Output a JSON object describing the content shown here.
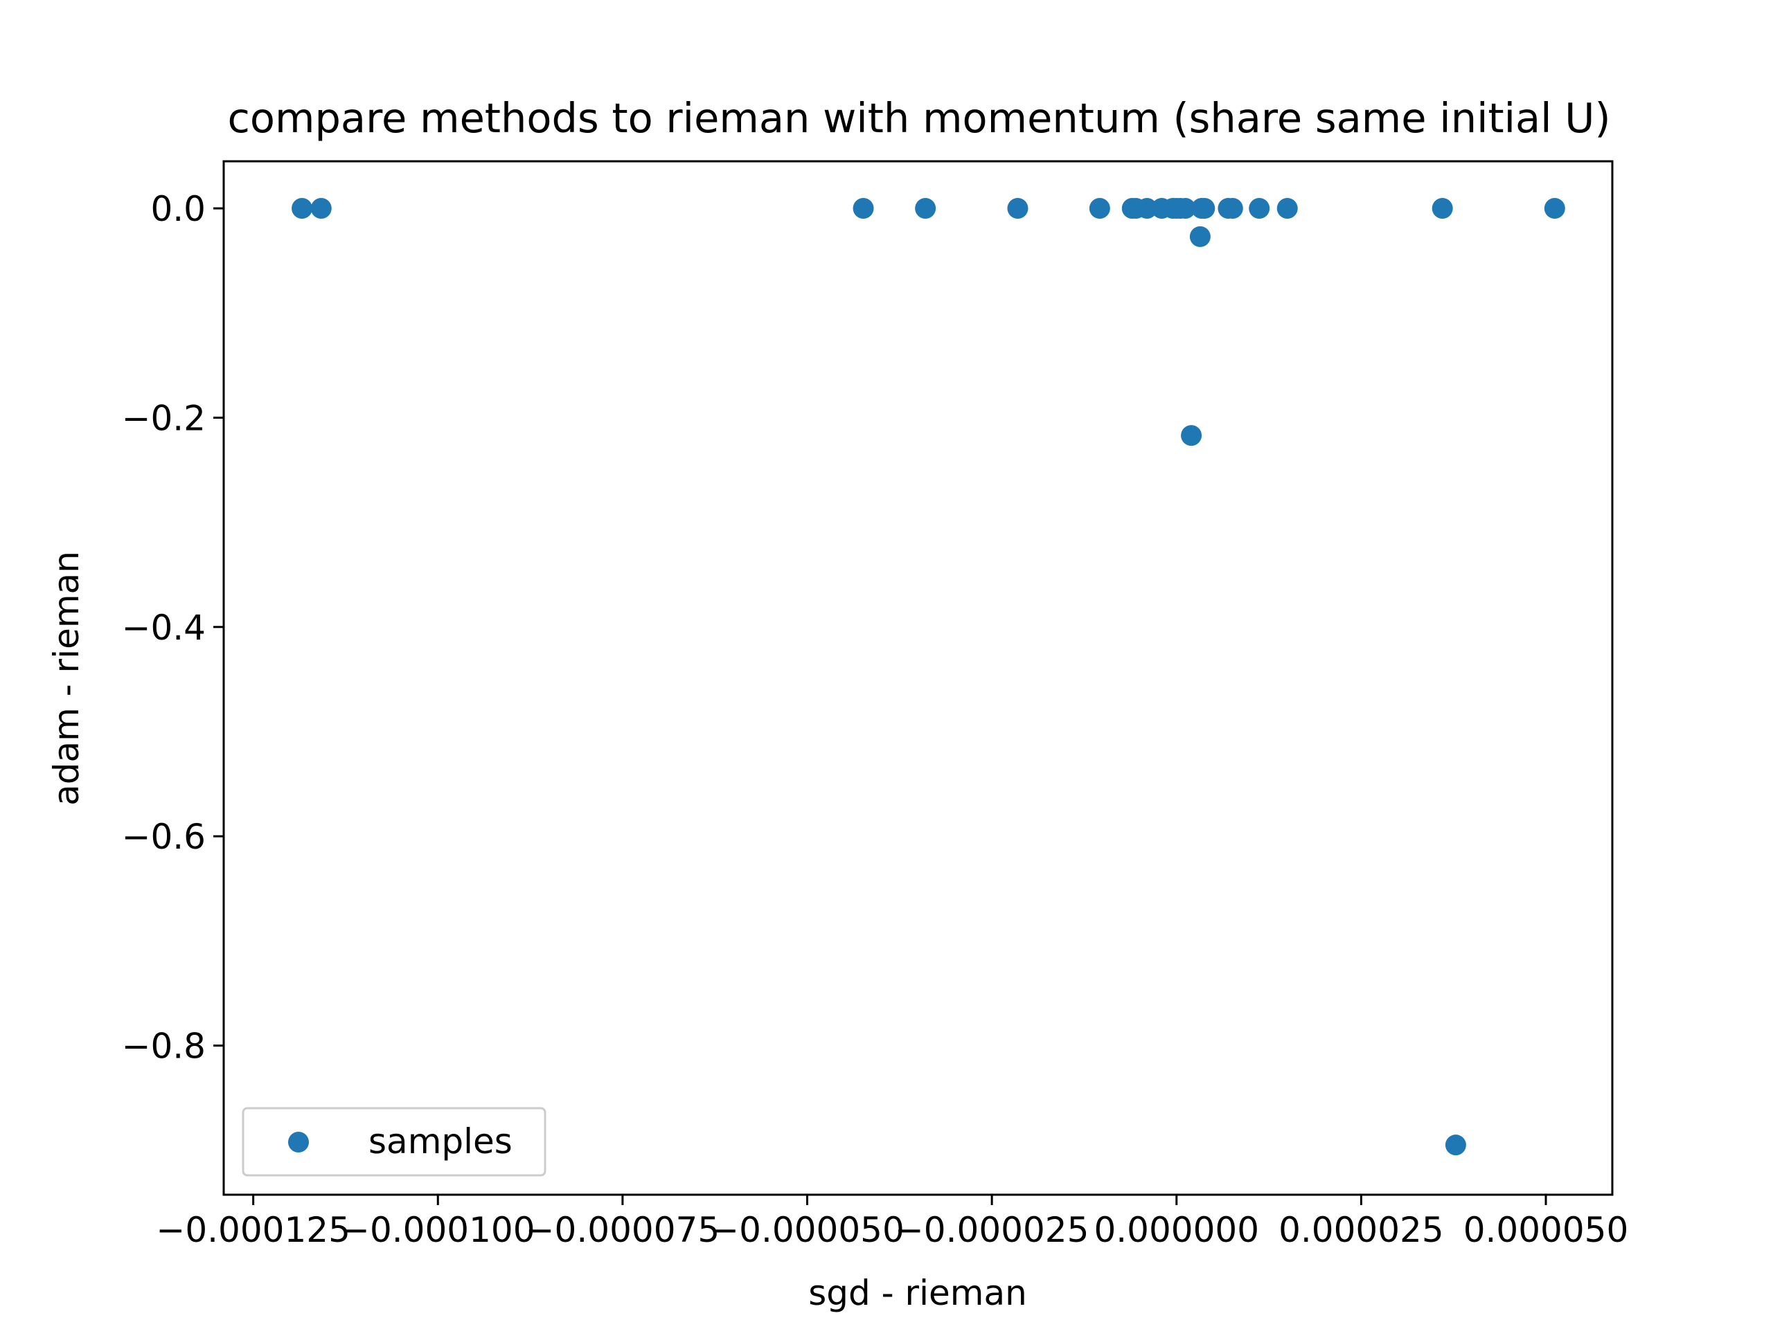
{
  "chart_data": {
    "type": "scatter",
    "title": "compare methods to rieman with momentum (share same initial U)",
    "xlabel": "sgd - rieman",
    "ylabel": "adam - rieman",
    "xlim": [
      -0.000129,
      5.9e-05
    ],
    "ylim": [
      -0.9425,
      0.045
    ],
    "xticks": [
      -0.000125,
      -0.0001,
      -7.5e-05,
      -5e-05,
      -2.5e-05,
      0.0,
      2.5e-05,
      5e-05
    ],
    "xtick_labels": [
      "−0.000125",
      "−0.000100",
      "−0.000075",
      "−0.000050",
      "−0.000025",
      "0.000000",
      "0.000025",
      "0.000050"
    ],
    "yticks": [
      0.0,
      -0.2,
      -0.4,
      -0.6,
      -0.8
    ],
    "ytick_labels": [
      "0.0",
      "−0.2",
      "−0.4",
      "−0.6",
      "−0.8"
    ],
    "grid": false,
    "legend": {
      "position": "lower-left",
      "entries": [
        "samples"
      ]
    },
    "series": [
      {
        "name": "samples",
        "color": "#1f77b4",
        "points": [
          {
            "x": -0.0001184,
            "y": 0.0
          },
          {
            "x": -0.0001158,
            "y": 0.0
          },
          {
            "x": -4.24e-05,
            "y": 0.0
          },
          {
            "x": -3.4e-05,
            "y": 0.0
          },
          {
            "x": -2.15e-05,
            "y": 0.0
          },
          {
            "x": -1.04e-05,
            "y": 0.0
          },
          {
            "x": -6e-06,
            "y": 0.0
          },
          {
            "x": -5.5e-06,
            "y": 0.0
          },
          {
            "x": -4e-06,
            "y": 0.0
          },
          {
            "x": -2e-06,
            "y": 0.0
          },
          {
            "x": -5e-07,
            "y": 0.0
          },
          {
            "x": 0.0,
            "y": 0.0
          },
          {
            "x": 5e-07,
            "y": 0.0
          },
          {
            "x": 1.2e-06,
            "y": 0.0
          },
          {
            "x": 2e-06,
            "y": -0.217
          },
          {
            "x": 3.2e-06,
            "y": -0.027
          },
          {
            "x": 3.4e-06,
            "y": 0.0
          },
          {
            "x": 3.8e-06,
            "y": 0.0
          },
          {
            "x": 7e-06,
            "y": 0.0
          },
          {
            "x": 7.6e-06,
            "y": 0.0
          },
          {
            "x": 1.12e-05,
            "y": 0.0
          },
          {
            "x": 1.5e-05,
            "y": 0.0
          },
          {
            "x": 3.6e-05,
            "y": 0.0
          },
          {
            "x": 3.78e-05,
            "y": -0.895
          },
          {
            "x": 5.12e-05,
            "y": 0.0
          }
        ]
      }
    ]
  }
}
